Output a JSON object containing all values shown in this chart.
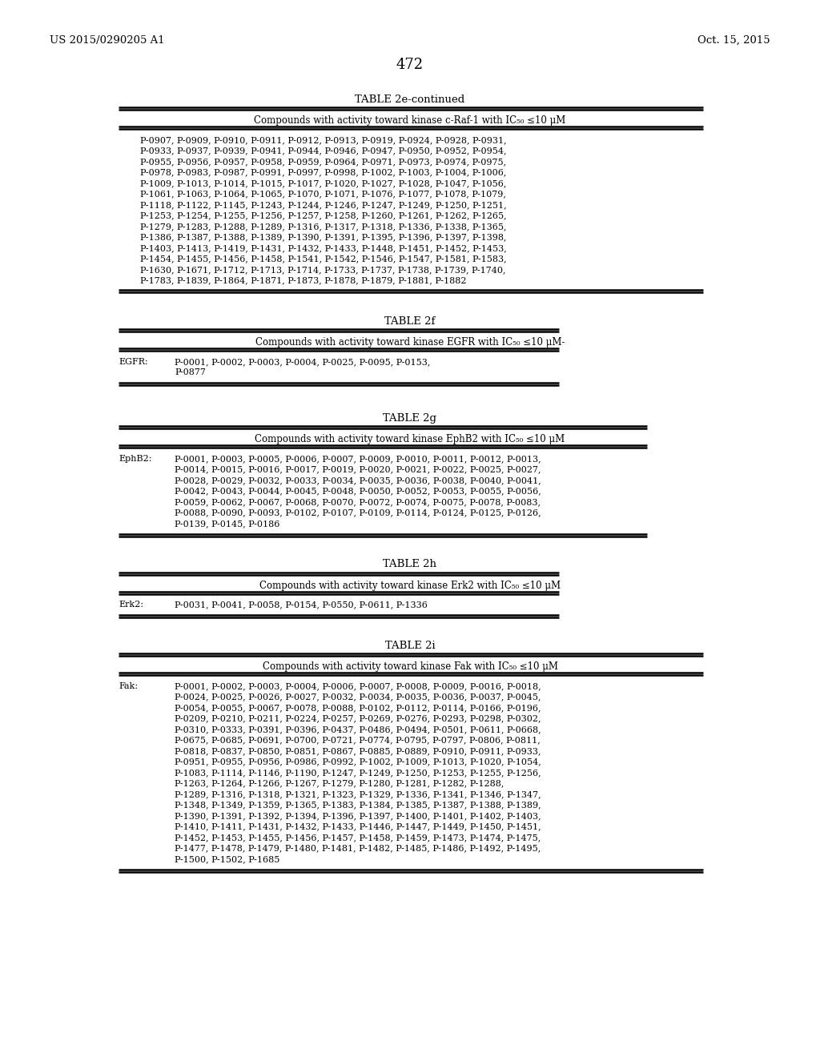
{
  "header_left": "US 2015/0290205 A1",
  "header_right": "Oct. 15, 2015",
  "page_number": "472",
  "background_color": "#ffffff",
  "text_color": "#000000",
  "tables": [
    {
      "title": "TABLE 2e-continued",
      "subtitle": "Compounds with activity toward kinase c-Raf-1 with IC₅₀ ≤10 μM",
      "label": "",
      "label_indent": 175,
      "content_indent": 175,
      "line_width": [
        148,
        878
      ],
      "content": "P-0907, P-0909, P-0910, P-0911, P-0912, P-0913, P-0919, P-0924, P-0928, P-0931,\nP-0933, P-0937, P-0939, P-0941, P-0944, P-0946, P-0947, P-0950, P-0952, P-0954,\nP-0955, P-0956, P-0957, P-0958, P-0959, P-0964, P-0971, P-0973, P-0974, P-0975,\nP-0978, P-0983, P-0987, P-0991, P-0997, P-0998, P-1002, P-1003, P-1004, P-1006,\nP-1009, P-1013, P-1014, P-1015, P-1017, P-1020, P-1027, P-1028, P-1047, P-1056,\nP-1061, P-1063, P-1064, P-1065, P-1070, P-1071, P-1076, P-1077, P-1078, P-1079,\nP-1118, P-1122, P-1145, P-1243, P-1244, P-1246, P-1247, P-1249, P-1250, P-1251,\nP-1253, P-1254, P-1255, P-1256, P-1257, P-1258, P-1260, P-1261, P-1262, P-1265,\nP-1279, P-1283, P-1288, P-1289, P-1316, P-1317, P-1318, P-1336, P-1338, P-1365,\nP-1386, P-1387, P-1388, P-1389, P-1390, P-1391, P-1395, P-1396, P-1397, P-1398,\nP-1403, P-1413, P-1419, P-1431, P-1432, P-1433, P-1448, P-1451, P-1452, P-1453,\nP-1454, P-1455, P-1456, P-1458, P-1541, P-1542, P-1546, P-1547, P-1581, P-1583,\nP-1630, P-1671, P-1712, P-1713, P-1714, P-1733, P-1737, P-1738, P-1739, P-1740,\nP-1783, P-1839, P-1864, P-1871, P-1873, P-1878, P-1879, P-1881, P-1882"
    },
    {
      "title": "TABLE 2f",
      "subtitle": "Compounds with activity toward kinase EGFR with IC₅₀ ≤10 μM-",
      "label": "EGFR:",
      "label_indent": 148,
      "content_indent": 218,
      "line_width": [
        148,
        698
      ],
      "content": "P-0001, P-0002, P-0003, P-0004, P-0025, P-0095, P-0153,\nP-0877"
    },
    {
      "title": "TABLE 2g",
      "subtitle": "Compounds with activity toward kinase EphB2 with IC₅₀ ≤10 μM",
      "label": "EphB2:",
      "label_indent": 148,
      "content_indent": 218,
      "line_width": [
        148,
        808
      ],
      "content": "P-0001, P-0003, P-0005, P-0006, P-0007, P-0009, P-0010, P-0011, P-0012, P-0013,\nP-0014, P-0015, P-0016, P-0017, P-0019, P-0020, P-0021, P-0022, P-0025, P-0027,\nP-0028, P-0029, P-0032, P-0033, P-0034, P-0035, P-0036, P-0038, P-0040, P-0041,\nP-0042, P-0043, P-0044, P-0045, P-0048, P-0050, P-0052, P-0053, P-0055, P-0056,\nP-0059, P-0062, P-0067, P-0068, P-0070, P-0072, P-0074, P-0075, P-0078, P-0083,\nP-0088, P-0090, P-0093, P-0102, P-0107, P-0109, P-0114, P-0124, P-0125, P-0126,\nP-0139, P-0145, P-0186"
    },
    {
      "title": "TABLE 2h",
      "subtitle": "Compounds with activity toward kinase Erk2 with IC₅₀ ≤10 μM",
      "label": "Erk2:",
      "label_indent": 148,
      "content_indent": 218,
      "line_width": [
        148,
        698
      ],
      "content": "P-0031, P-0041, P-0058, P-0154, P-0550, P-0611, P-1336"
    },
    {
      "title": "TABLE 2i",
      "subtitle": "Compounds with activity toward kinase Fak with IC₅₀ ≤10 μM",
      "label": "Fak:",
      "label_indent": 148,
      "content_indent": 218,
      "line_width": [
        148,
        878
      ],
      "content": "P-0001, P-0002, P-0003, P-0004, P-0006, P-0007, P-0008, P-0009, P-0016, P-0018,\nP-0024, P-0025, P-0026, P-0027, P-0032, P-0034, P-0035, P-0036, P-0037, P-0045,\nP-0054, P-0055, P-0067, P-0078, P-0088, P-0102, P-0112, P-0114, P-0166, P-0196,\nP-0209, P-0210, P-0211, P-0224, P-0257, P-0269, P-0276, P-0293, P-0298, P-0302,\nP-0310, P-0333, P-0391, P-0396, P-0437, P-0486, P-0494, P-0501, P-0611, P-0668,\nP-0675, P-0685, P-0691, P-0700, P-0721, P-0774, P-0795, P-0797, P-0806, P-0811,\nP-0818, P-0837, P-0850, P-0851, P-0867, P-0885, P-0889, P-0910, P-0911, P-0933,\nP-0951, P-0955, P-0956, P-0986, P-0992, P-1002, P-1009, P-1013, P-1020, P-1054,\nP-1083, P-1114, P-1146, P-1190, P-1247, P-1249, P-1250, P-1253, P-1255, P-1256,\nP-1263, P-1264, P-1266, P-1267, P-1279, P-1280, P-1281, P-1282, P-1288,\nP-1289, P-1316, P-1318, P-1321, P-1323, P-1329, P-1336, P-1341, P-1346, P-1347,\nP-1348, P-1349, P-1359, P-1365, P-1383, P-1384, P-1385, P-1387, P-1388, P-1389,\nP-1390, P-1391, P-1392, P-1394, P-1396, P-1397, P-1400, P-1401, P-1402, P-1403,\nP-1410, P-1411, P-1431, P-1432, P-1433, P-1446, P-1447, P-1449, P-1450, P-1451,\nP-1452, P-1453, P-1455, P-1456, P-1457, P-1458, P-1459, P-1473, P-1474, P-1475,\nP-1477, P-1478, P-1479, P-1480, P-1481, P-1482, P-1485, P-1486, P-1492, P-1495,\nP-1500, P-1502, P-1685"
    }
  ]
}
